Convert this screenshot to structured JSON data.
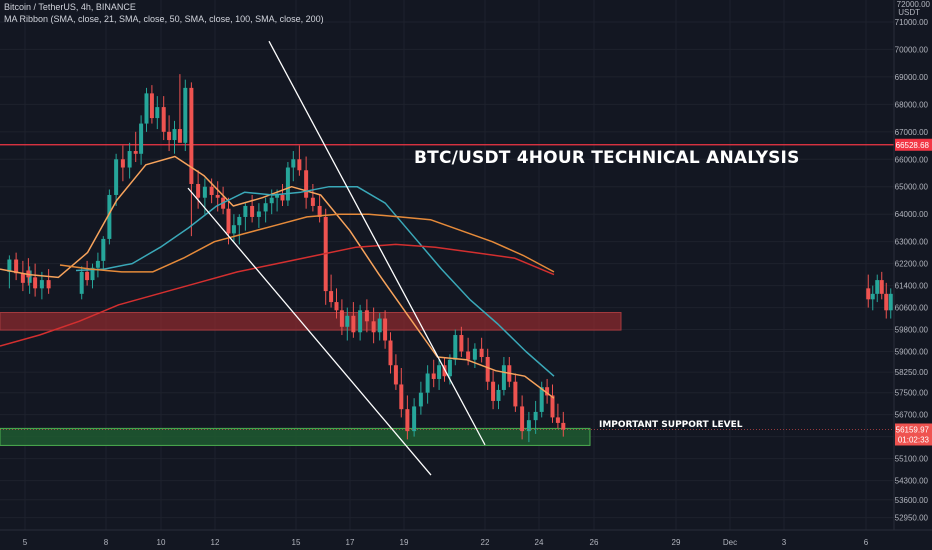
{
  "header": {
    "symbol_line": "Bitcoin / TetherUS, 4h, BINANCE",
    "indicator_line": "MA Ribbon (SMA, close, 21, SMA, close, 50, SMA, close, 100, SMA, close, 200)"
  },
  "annotations": {
    "title": "BTC/USDT 4HOUR TECHNICAL ANALYSIS",
    "support_label": "IMPORTANT SUPPORT LEVEL"
  },
  "colors": {
    "background": "#131722",
    "up_candle": "#26a69a",
    "down_candle": "#ef5350",
    "resistance_line": "#f23645",
    "resistance_zone": "#8b2a2e",
    "support_zone": "#1f5a30",
    "support_zone_border": "#4caf50",
    "trendlines": "#ffffff",
    "ma21": "#f7a35c",
    "ma50": "#3aa8b8",
    "ma100": "#e58a3a",
    "ma200": "#d32f2f",
    "price_tag": "#ef5350",
    "grid": "#1e222d",
    "axis_text": "#b2b5be"
  },
  "chart_data": {
    "type": "candlestick",
    "interval": "4h",
    "exchange": "BINANCE",
    "currency": "USDT",
    "ylim": [
      52500,
      71800
    ],
    "grid": true,
    "x_tick_labels": [
      "5",
      "8",
      "10",
      "12",
      "15",
      "17",
      "19",
      "22",
      "24",
      "26",
      "29",
      "Dec",
      "3",
      "6"
    ],
    "y_tick_labels": [
      "52950.00",
      "53600.00",
      "54300.00",
      "55100.00",
      "55900.00",
      "56700.00",
      "57500.00",
      "58250.00",
      "59000.00",
      "59800.00",
      "60600.00",
      "61400.00",
      "62200.00",
      "63000.00",
      "64000.00",
      "65000.00",
      "66000.00",
      "67000.00",
      "68000.00",
      "69000.00",
      "70000.00",
      "71000.00"
    ],
    "axis_top_label": "72000.00",
    "currency_label": "USDT",
    "current_price": "56159.97",
    "countdown": "01:02:33",
    "resistance_level": "66528.68",
    "resistance_zone": [
      59780,
      60420
    ],
    "support_zone": [
      55580,
      56200
    ],
    "trendlines": [
      {
        "from": {
          "x": "11",
          "y": 64950
        },
        "to": {
          "x": "20",
          "y": 54500
        }
      },
      {
        "from": {
          "x": "14",
          "y": 70300
        },
        "to": {
          "x": "22",
          "y": 55600
        }
      }
    ],
    "candles": [
      {
        "x": "4",
        "o": 61900,
        "h": 62500,
        "l": 61300,
        "c": 62350
      },
      {
        "x": "4",
        "o": 62350,
        "h": 62600,
        "l": 61600,
        "c": 61850
      },
      {
        "x": "4",
        "o": 61850,
        "h": 62300,
        "l": 61200,
        "c": 61500
      },
      {
        "x": "4",
        "o": 61500,
        "h": 62100,
        "l": 61100,
        "c": 61950
      },
      {
        "x": "5",
        "o": 61950,
        "h": 62400,
        "l": 61400,
        "c": 61700
      },
      {
        "x": "5",
        "o": 61700,
        "h": 62200,
        "l": 61000,
        "c": 61300
      },
      {
        "x": "5",
        "o": 61300,
        "h": 61900,
        "l": 60900,
        "c": 61600
      },
      {
        "x": "5",
        "o": 61600,
        "h": 62000,
        "l": 61100,
        "c": 61300
      },
      {
        "x": "6",
        "o": 61300,
        "h": 61800,
        "l": 60600,
        "c": 60900
      },
      {
        "x": "6",
        "o": 60900,
        "h": 61400,
        "l": 60500,
        "c": 61100
      },
      {
        "x": "6",
        "o": 61100,
        "h": 61800,
        "l": 60800,
        "c": 61600
      },
      {
        "x": "6",
        "o": 61600,
        "h": 61900,
        "l": 60900,
        "c": 61100
      },
      {
        "x": "6",
        "o": 61100,
        "h": 61500,
        "l": 60200,
        "c": 60500
      },
      {
        "x": "6",
        "o": 60500,
        "h": 61300,
        "l": 60200,
        "c": 61100
      },
      {
        "x": "7",
        "o": 61100,
        "h": 62100,
        "l": 60900,
        "c": 61900
      },
      {
        "x": "7",
        "o": 61900,
        "h": 62300,
        "l": 61400,
        "c": 61600
      },
      {
        "x": "7",
        "o": 61600,
        "h": 62200,
        "l": 61300,
        "c": 62050
      },
      {
        "x": "7",
        "o": 62050,
        "h": 62600,
        "l": 61700,
        "c": 62300
      },
      {
        "x": "7",
        "o": 62300,
        "h": 63200,
        "l": 62000,
        "c": 63100
      },
      {
        "x": "8",
        "o": 63100,
        "h": 64900,
        "l": 62900,
        "c": 64700
      },
      {
        "x": "8",
        "o": 64700,
        "h": 66200,
        "l": 64300,
        "c": 66000
      },
      {
        "x": "8",
        "o": 66000,
        "h": 66500,
        "l": 65200,
        "c": 65700
      },
      {
        "x": "8",
        "o": 65700,
        "h": 66600,
        "l": 65300,
        "c": 66300
      },
      {
        "x": "9",
        "o": 66300,
        "h": 67000,
        "l": 65900,
        "c": 66200
      },
      {
        "x": "9",
        "o": 66200,
        "h": 67600,
        "l": 65800,
        "c": 67300
      },
      {
        "x": "9",
        "o": 67300,
        "h": 68600,
        "l": 67000,
        "c": 68400
      },
      {
        "x": "9",
        "o": 68400,
        "h": 68700,
        "l": 67300,
        "c": 67500
      },
      {
        "x": "9",
        "o": 67500,
        "h": 68300,
        "l": 67100,
        "c": 67900
      },
      {
        "x": "10",
        "o": 67900,
        "h": 68300,
        "l": 66700,
        "c": 67000
      },
      {
        "x": "10",
        "o": 67000,
        "h": 67600,
        "l": 66300,
        "c": 66700
      },
      {
        "x": "10",
        "o": 66700,
        "h": 67400,
        "l": 66200,
        "c": 67100
      },
      {
        "x": "10",
        "o": 67100,
        "h": 69100,
        "l": 66700,
        "c": 66600
      },
      {
        "x": "10",
        "o": 66600,
        "h": 68900,
        "l": 66300,
        "c": 68600
      },
      {
        "x": "11",
        "o": 68600,
        "h": 68800,
        "l": 63200,
        "c": 65100
      },
      {
        "x": "11",
        "o": 65100,
        "h": 65600,
        "l": 64200,
        "c": 64600
      },
      {
        "x": "11",
        "o": 64600,
        "h": 65300,
        "l": 64000,
        "c": 65000
      },
      {
        "x": "11",
        "o": 65000,
        "h": 65300,
        "l": 64400,
        "c": 64700
      },
      {
        "x": "12",
        "o": 64700,
        "h": 65200,
        "l": 64100,
        "c": 64600
      },
      {
        "x": "12",
        "o": 64600,
        "h": 65000,
        "l": 64000,
        "c": 64200
      },
      {
        "x": "12",
        "o": 64200,
        "h": 64600,
        "l": 62900,
        "c": 63300
      },
      {
        "x": "12",
        "o": 63300,
        "h": 64000,
        "l": 63000,
        "c": 63600
      },
      {
        "x": "12",
        "o": 63600,
        "h": 64000,
        "l": 62900,
        "c": 63900
      },
      {
        "x": "13",
        "o": 63900,
        "h": 64400,
        "l": 63400,
        "c": 64300
      },
      {
        "x": "13",
        "o": 64300,
        "h": 64700,
        "l": 63700,
        "c": 63900
      },
      {
        "x": "13",
        "o": 63900,
        "h": 64400,
        "l": 63500,
        "c": 64100
      },
      {
        "x": "13",
        "o": 64100,
        "h": 64600,
        "l": 63700,
        "c": 64400
      },
      {
        "x": "14",
        "o": 64400,
        "h": 64900,
        "l": 64000,
        "c": 64600
      },
      {
        "x": "14",
        "o": 64600,
        "h": 64900,
        "l": 64100,
        "c": 64700
      },
      {
        "x": "14",
        "o": 64700,
        "h": 65100,
        "l": 64300,
        "c": 64500
      },
      {
        "x": "14",
        "o": 64500,
        "h": 65900,
        "l": 64300,
        "c": 65700
      },
      {
        "x": "14",
        "o": 65700,
        "h": 66300,
        "l": 65200,
        "c": 66000
      },
      {
        "x": "15",
        "o": 66000,
        "h": 66500,
        "l": 65400,
        "c": 65600
      },
      {
        "x": "15",
        "o": 65600,
        "h": 66100,
        "l": 64200,
        "c": 64600
      },
      {
        "x": "15",
        "o": 64600,
        "h": 65100,
        "l": 64100,
        "c": 64300
      },
      {
        "x": "15",
        "o": 64300,
        "h": 64700,
        "l": 63700,
        "c": 63900
      },
      {
        "x": "16",
        "o": 63900,
        "h": 64200,
        "l": 60700,
        "c": 61200
      },
      {
        "x": "16",
        "o": 61200,
        "h": 61800,
        "l": 60600,
        "c": 60800
      },
      {
        "x": "16",
        "o": 60800,
        "h": 61300,
        "l": 60200,
        "c": 60500
      },
      {
        "x": "16",
        "o": 60500,
        "h": 60900,
        "l": 59600,
        "c": 59900
      },
      {
        "x": "16",
        "o": 59900,
        "h": 60600,
        "l": 59400,
        "c": 60300
      },
      {
        "x": "17",
        "o": 60300,
        "h": 60800,
        "l": 59500,
        "c": 59700
      },
      {
        "x": "17",
        "o": 59700,
        "h": 60700,
        "l": 59400,
        "c": 60500
      },
      {
        "x": "17",
        "o": 60500,
        "h": 60900,
        "l": 59700,
        "c": 60100
      },
      {
        "x": "17",
        "o": 60100,
        "h": 60600,
        "l": 59300,
        "c": 59700
      },
      {
        "x": "18",
        "o": 59700,
        "h": 60400,
        "l": 59400,
        "c": 60200
      },
      {
        "x": "18",
        "o": 60200,
        "h": 60500,
        "l": 59100,
        "c": 59400
      },
      {
        "x": "18",
        "o": 59400,
        "h": 59700,
        "l": 58200,
        "c": 58500
      },
      {
        "x": "18",
        "o": 58500,
        "h": 58900,
        "l": 57600,
        "c": 57800
      },
      {
        "x": "18",
        "o": 57800,
        "h": 58400,
        "l": 56600,
        "c": 56900
      },
      {
        "x": "19",
        "o": 56900,
        "h": 57400,
        "l": 55800,
        "c": 56100
      },
      {
        "x": "19",
        "o": 56100,
        "h": 57300,
        "l": 55900,
        "c": 57000
      },
      {
        "x": "19",
        "o": 57000,
        "h": 57900,
        "l": 56700,
        "c": 57500
      },
      {
        "x": "19",
        "o": 57500,
        "h": 58500,
        "l": 57100,
        "c": 58200
      },
      {
        "x": "20",
        "o": 58200,
        "h": 58700,
        "l": 57700,
        "c": 58000
      },
      {
        "x": "20",
        "o": 58000,
        "h": 58700,
        "l": 57600,
        "c": 58500
      },
      {
        "x": "20",
        "o": 58500,
        "h": 58800,
        "l": 57900,
        "c": 58100
      },
      {
        "x": "20",
        "o": 58100,
        "h": 58900,
        "l": 57800,
        "c": 58700
      },
      {
        "x": "20",
        "o": 58700,
        "h": 59800,
        "l": 58500,
        "c": 59600
      },
      {
        "x": "21",
        "o": 59600,
        "h": 59900,
        "l": 58800,
        "c": 59000
      },
      {
        "x": "21",
        "o": 59000,
        "h": 59500,
        "l": 58500,
        "c": 58700
      },
      {
        "x": "21",
        "o": 58700,
        "h": 59300,
        "l": 58400,
        "c": 59100
      },
      {
        "x": "21",
        "o": 59100,
        "h": 59500,
        "l": 58600,
        "c": 58800
      },
      {
        "x": "22",
        "o": 58800,
        "h": 59100,
        "l": 57600,
        "c": 57900
      },
      {
        "x": "22",
        "o": 57900,
        "h": 58300,
        "l": 56900,
        "c": 57200
      },
      {
        "x": "22",
        "o": 57200,
        "h": 57800,
        "l": 56900,
        "c": 57600
      },
      {
        "x": "22",
        "o": 57600,
        "h": 58800,
        "l": 57400,
        "c": 58500
      },
      {
        "x": "22",
        "o": 58500,
        "h": 58800,
        "l": 57700,
        "c": 57900
      },
      {
        "x": "23",
        "o": 57900,
        "h": 58200,
        "l": 56800,
        "c": 57000
      },
      {
        "x": "23",
        "o": 57000,
        "h": 57400,
        "l": 55800,
        "c": 56100
      },
      {
        "x": "23",
        "o": 56100,
        "h": 56800,
        "l": 55700,
        "c": 56500
      },
      {
        "x": "23",
        "o": 56500,
        "h": 57200,
        "l": 56000,
        "c": 56800
      },
      {
        "x": "24",
        "o": 56800,
        "h": 57900,
        "l": 56600,
        "c": 57700
      },
      {
        "x": "24",
        "o": 57700,
        "h": 58000,
        "l": 57100,
        "c": 57400
      },
      {
        "x": "24",
        "o": 57400,
        "h": 57800,
        "l": 56400,
        "c": 56600
      },
      {
        "x": "24",
        "o": 56600,
        "h": 57100,
        "l": 56200,
        "c": 56400
      },
      {
        "x": "24",
        "o": 56400,
        "h": 56800,
        "l": 55900,
        "c": 56160
      }
    ],
    "series": [
      {
        "name": "MA 21",
        "color": "#f7a35c",
        "values": [
          62000,
          61800,
          61700,
          62600,
          64500,
          65800,
          66100,
          65400,
          64300,
          64600,
          65000,
          64700,
          63400,
          61800,
          60300,
          58800,
          58700,
          58300,
          58100,
          57300
        ]
      },
      {
        "name": "MA 50",
        "color": "#3aa8b8",
        "values": [
          61950,
          62000,
          62200,
          62800,
          63500,
          64300,
          64800,
          64700,
          64800,
          65000,
          65000,
          64400,
          63200,
          62000,
          60900,
          60000,
          59000,
          58100
        ]
      },
      {
        "name": "MA 100",
        "color": "#e58a3a",
        "values": [
          62150,
          62000,
          61900,
          61900,
          62400,
          63000,
          63300,
          63600,
          63900,
          64000,
          64000,
          63900,
          63800,
          63400,
          63000,
          62500,
          61900
        ]
      },
      {
        "name": "MA 200",
        "color": "#d32f2f",
        "values": [
          59200,
          59600,
          60100,
          60700,
          61100,
          61500,
          61900,
          62200,
          62500,
          62800,
          62900,
          62800,
          62600,
          62400,
          61800
        ]
      }
    ]
  }
}
